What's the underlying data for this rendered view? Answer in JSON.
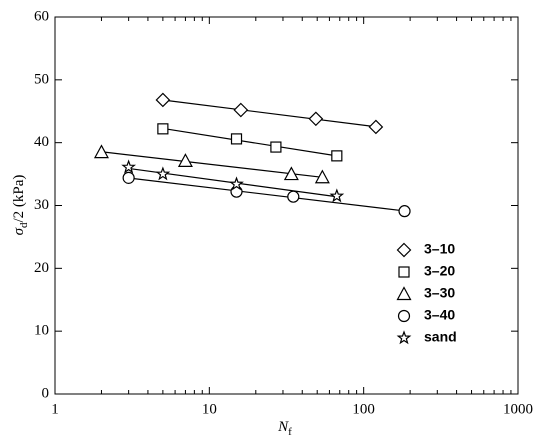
{
  "chart_data": {
    "type": "scatter",
    "log_x": true,
    "xlabel": "N",
    "xlabel_sub": "f",
    "ylabel": "σ",
    "ylabel_sub": "d",
    "ylabel_rest": "/2 (kPa)",
    "xlim": [
      1,
      1000
    ],
    "xticks": [
      1,
      10,
      100,
      1000
    ],
    "ylim": [
      0,
      60
    ],
    "yticks": [
      0,
      10,
      20,
      30,
      40,
      50,
      60
    ],
    "fit_lines": true,
    "series": [
      {
        "name": "3–10",
        "marker": "diamond",
        "color": "#000000",
        "x": [
          5,
          16,
          49,
          120
        ],
        "values": [
          46.8,
          45.2,
          43.8,
          42.5
        ]
      },
      {
        "name": "3–20",
        "marker": "square",
        "color": "#000000",
        "x": [
          5,
          15,
          27,
          67
        ],
        "values": [
          42.2,
          40.6,
          39.3,
          37.9
        ]
      },
      {
        "name": "3–30",
        "marker": "triangle",
        "color": "#000000",
        "x": [
          2,
          7,
          34,
          54
        ],
        "values": [
          38.5,
          37.1,
          35.0,
          34.5
        ]
      },
      {
        "name": "3–40",
        "marker": "circle",
        "color": "#000000",
        "x": [
          3,
          15,
          35,
          184
        ],
        "values": [
          34.4,
          32.2,
          31.4,
          29.1
        ]
      },
      {
        "name": "sand",
        "marker": "star",
        "color": "#000000",
        "x": [
          3,
          5,
          15,
          67
        ],
        "values": [
          36.1,
          35.0,
          33.4,
          31.5
        ]
      }
    ]
  }
}
